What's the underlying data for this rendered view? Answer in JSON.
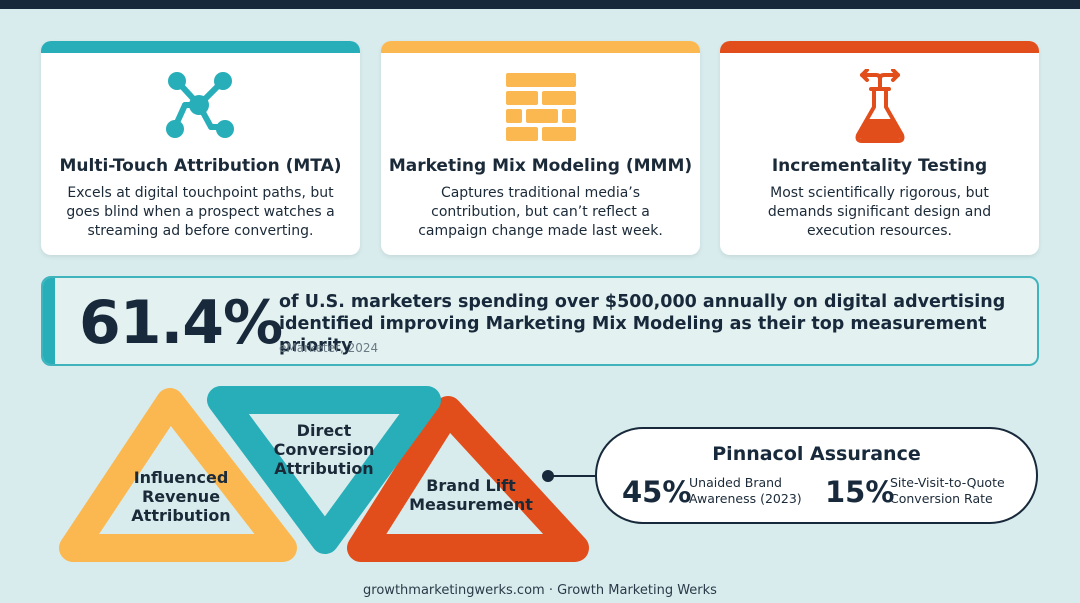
{
  "colors": {
    "teal": "#27aeb8",
    "amber": "#fbb850",
    "orange_red": "#e24e1b",
    "navy": "#17293a",
    "background": "#d9eced"
  },
  "cards": [
    {
      "icon": "network-nodes-icon",
      "title": "Multi-Touch Attribution (MTA)",
      "desc": "Excels at digital touchpoint paths, but goes blind when a prospect watches a streaming ad before converting."
    },
    {
      "icon": "brick-wall-icon",
      "title": "Marketing Mix Modeling (MMM)",
      "desc": "Captures traditional media’s contribution, but can’t reflect a campaign change made last week."
    },
    {
      "icon": "flask-icon",
      "title": "Incrementality Testing",
      "desc": "Most scientifically rigorous, but demands significant design and execution resources."
    }
  ],
  "stat": {
    "value": "61.4%",
    "text": "of U.S. marketers spending over $500,000 annually on digital advertising identified improving Marketing Mix Modeling as their top measurement priority",
    "source": "eMarketer, 2024"
  },
  "triangles": [
    {
      "label": "Influenced Revenue Attribution"
    },
    {
      "label": "Direct Conversion Attribution"
    },
    {
      "label": "Brand Lift Measurement"
    }
  ],
  "case_study": {
    "title": "Pinnacol Assurance",
    "metrics": [
      {
        "value": "45%",
        "label_line1": "Unaided Brand",
        "label_line2": "Awareness (2023)"
      },
      {
        "value": "15%",
        "label_line1": "Site-Visit-to-Quote",
        "label_line2": "Conversion Rate"
      }
    ]
  },
  "footer": "growthmarketingwerks.com · Growth Marketing Werks"
}
